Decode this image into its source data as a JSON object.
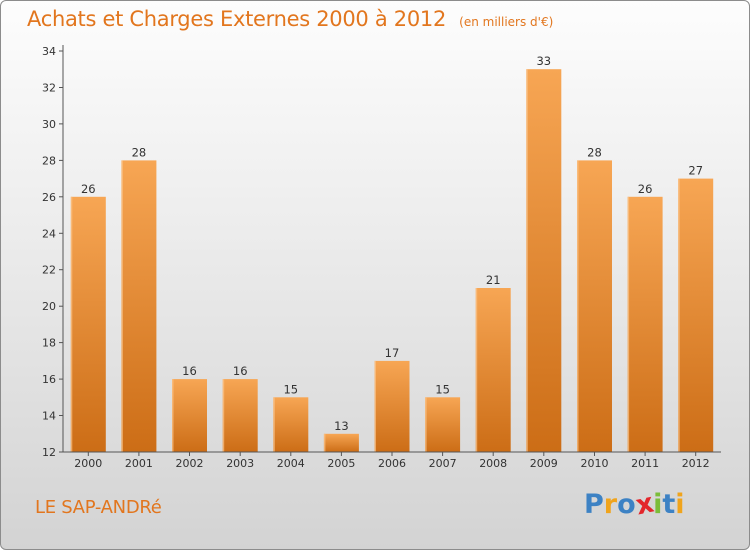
{
  "header": {
    "title": "Achats et Charges Externes 2000 à 2012",
    "subtitle": "(en milliers d'€)"
  },
  "footer": {
    "commune": "LE SAP-ANDRé",
    "logo": "Proxiti",
    "logo_letters": [
      {
        "ch": "P",
        "color": "#3d82c4"
      },
      {
        "ch": "r",
        "color": "#f0a41c"
      },
      {
        "ch": "o",
        "color": "#3d82c4"
      },
      {
        "ch": "x",
        "color": "#e3262b"
      },
      {
        "ch": "i",
        "color": "#7bbd3a"
      },
      {
        "ch": "t",
        "color": "#3d82c4"
      },
      {
        "ch": "i",
        "color": "#f0a41c"
      }
    ]
  },
  "chart_data": {
    "type": "bar",
    "title": "Achats et Charges Externes 2000 à 2012",
    "subtitle": "(en milliers d'€)",
    "xlabel": "",
    "ylabel": "",
    "categories": [
      "2000",
      "2001",
      "2002",
      "2003",
      "2004",
      "2005",
      "2006",
      "2007",
      "2008",
      "2009",
      "2010",
      "2011",
      "2012"
    ],
    "values": [
      26,
      28,
      16,
      16,
      15,
      13,
      17,
      15,
      21,
      33,
      28,
      26,
      27
    ],
    "ylim": [
      12,
      34
    ],
    "yticks": [
      12,
      14,
      16,
      18,
      20,
      22,
      24,
      26,
      28,
      30,
      32,
      34
    ],
    "grid": false,
    "legend": "none",
    "colors": {
      "bar_light": "#f7a654",
      "bar_dark": "#cc6d16",
      "axis": "#555555",
      "text_accent": "#e2761e"
    }
  }
}
